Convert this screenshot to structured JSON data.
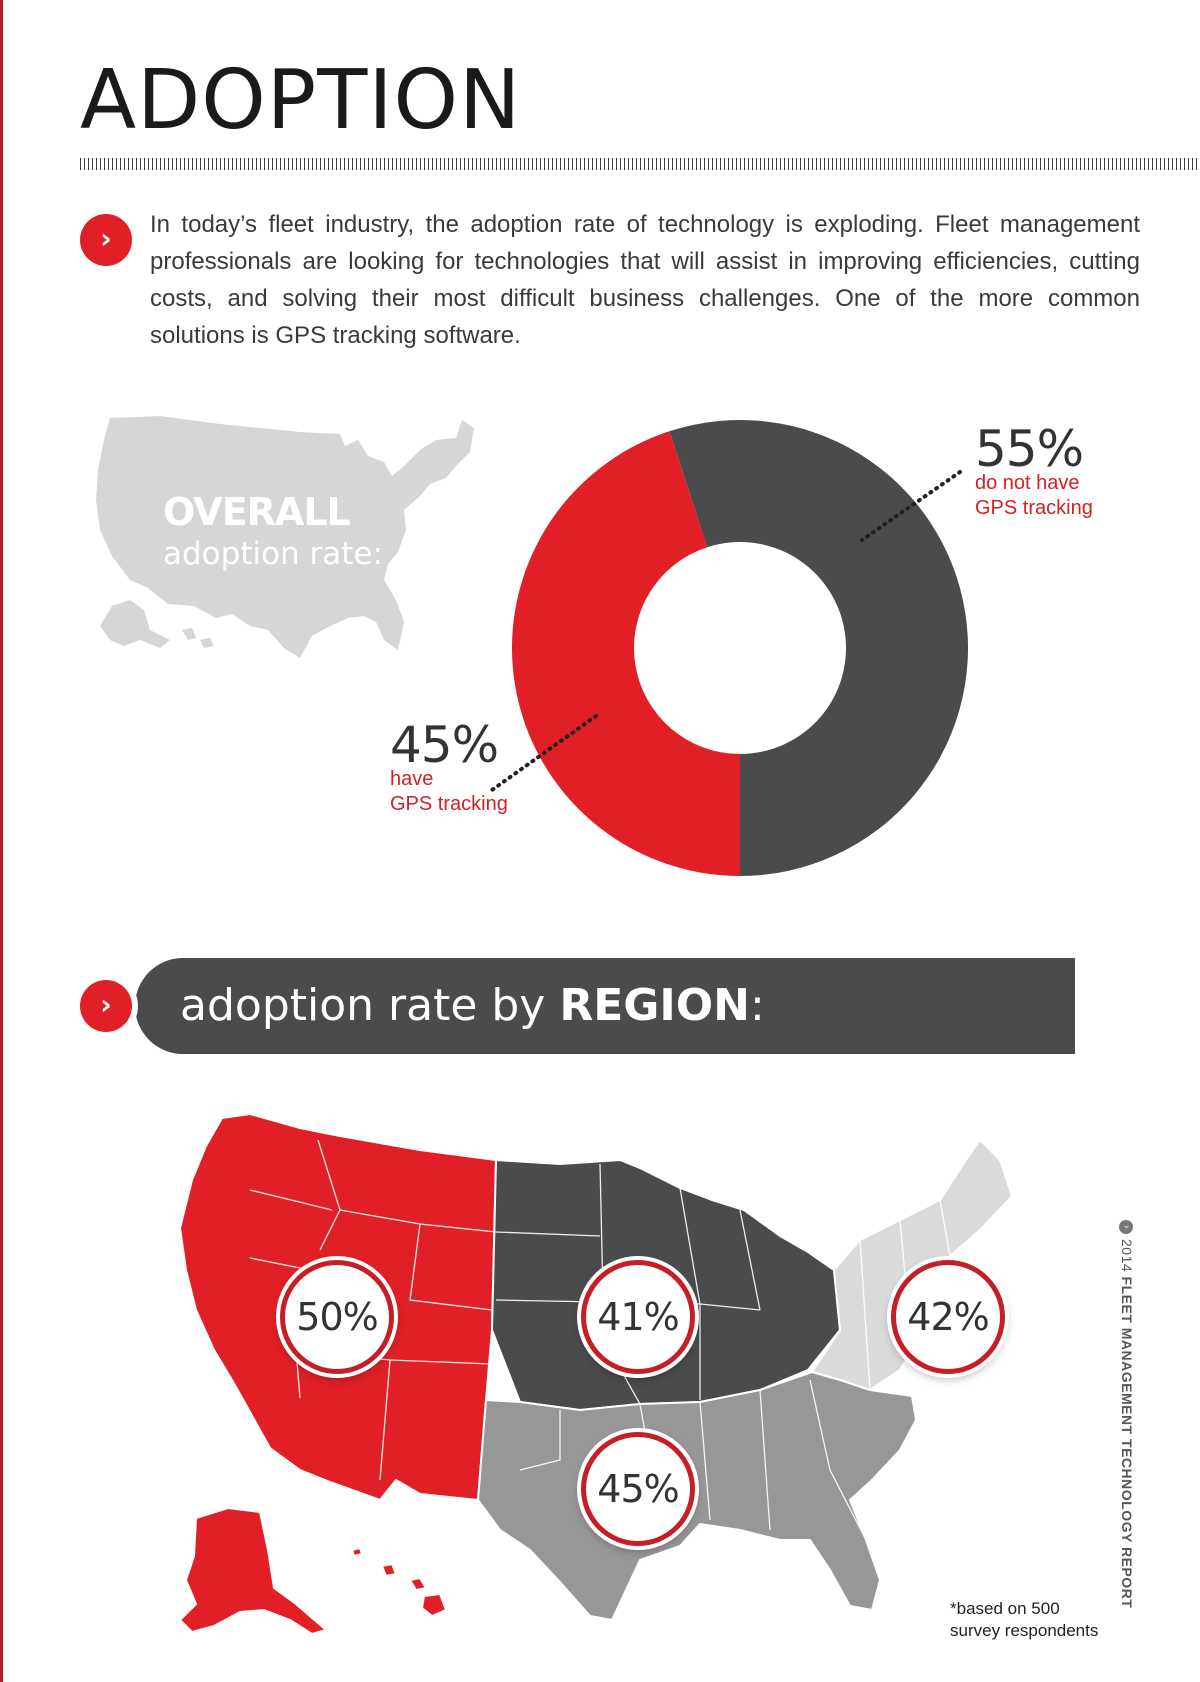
{
  "page": {
    "title": "ADOPTION",
    "intro": "In today’s fleet industry, the adoption rate of technology is exploding. Fleet management professionals are looking for technologies that will assist in improving efficiencies, cutting costs, and solving their most difficult business challenges. One of the more common solutions is GPS tracking software.",
    "overall_title": "OVERALL",
    "overall_subtitle": "adoption rate:",
    "region_heading_prefix": "adoption rate by ",
    "region_heading_bold": "REGION",
    "region_heading_suffix": ":",
    "footnote_line1": "*based on 500",
    "footnote_line2": "survey respondents",
    "side_year": "2014",
    "side_title": "FLEET MANAGEMENT TECHNOLOGY REPORT",
    "icons": [
      "chevron-right-icon",
      "chevron-right-icon",
      "copyright-icon"
    ]
  },
  "colors": {
    "red": "#e11f26",
    "dark_gray": "#4a4b4d",
    "light_gray": "#d4d4d4",
    "mid_gray": "#979797",
    "pale_gray": "#dadada"
  },
  "chart_data": [
    {
      "type": "pie",
      "title": "OVERALL adoption rate:",
      "series": [
        {
          "label": "have GPS tracking",
          "pct_label": "45%",
          "pct_line1": "have",
          "pct_line2": "GPS tracking",
          "value": 45,
          "color": "#e11f26"
        },
        {
          "label": "do not have GPS tracking",
          "pct_label": "55%",
          "pct_line1": "do not have",
          "pct_line2": "GPS tracking",
          "value": 55,
          "color": "#4a4b4d"
        }
      ]
    },
    {
      "type": "map",
      "title": "adoption rate by REGION:",
      "regions": [
        {
          "region": "West",
          "value": 50,
          "label": "50%",
          "color": "#e11f26"
        },
        {
          "region": "Midwest",
          "value": 41,
          "label": "41%",
          "color": "#4a4b4d"
        },
        {
          "region": "Northeast",
          "value": 42,
          "label": "42%",
          "color": "#dadada"
        },
        {
          "region": "South",
          "value": 45,
          "label": "45%",
          "color": "#979797"
        }
      ]
    }
  ]
}
